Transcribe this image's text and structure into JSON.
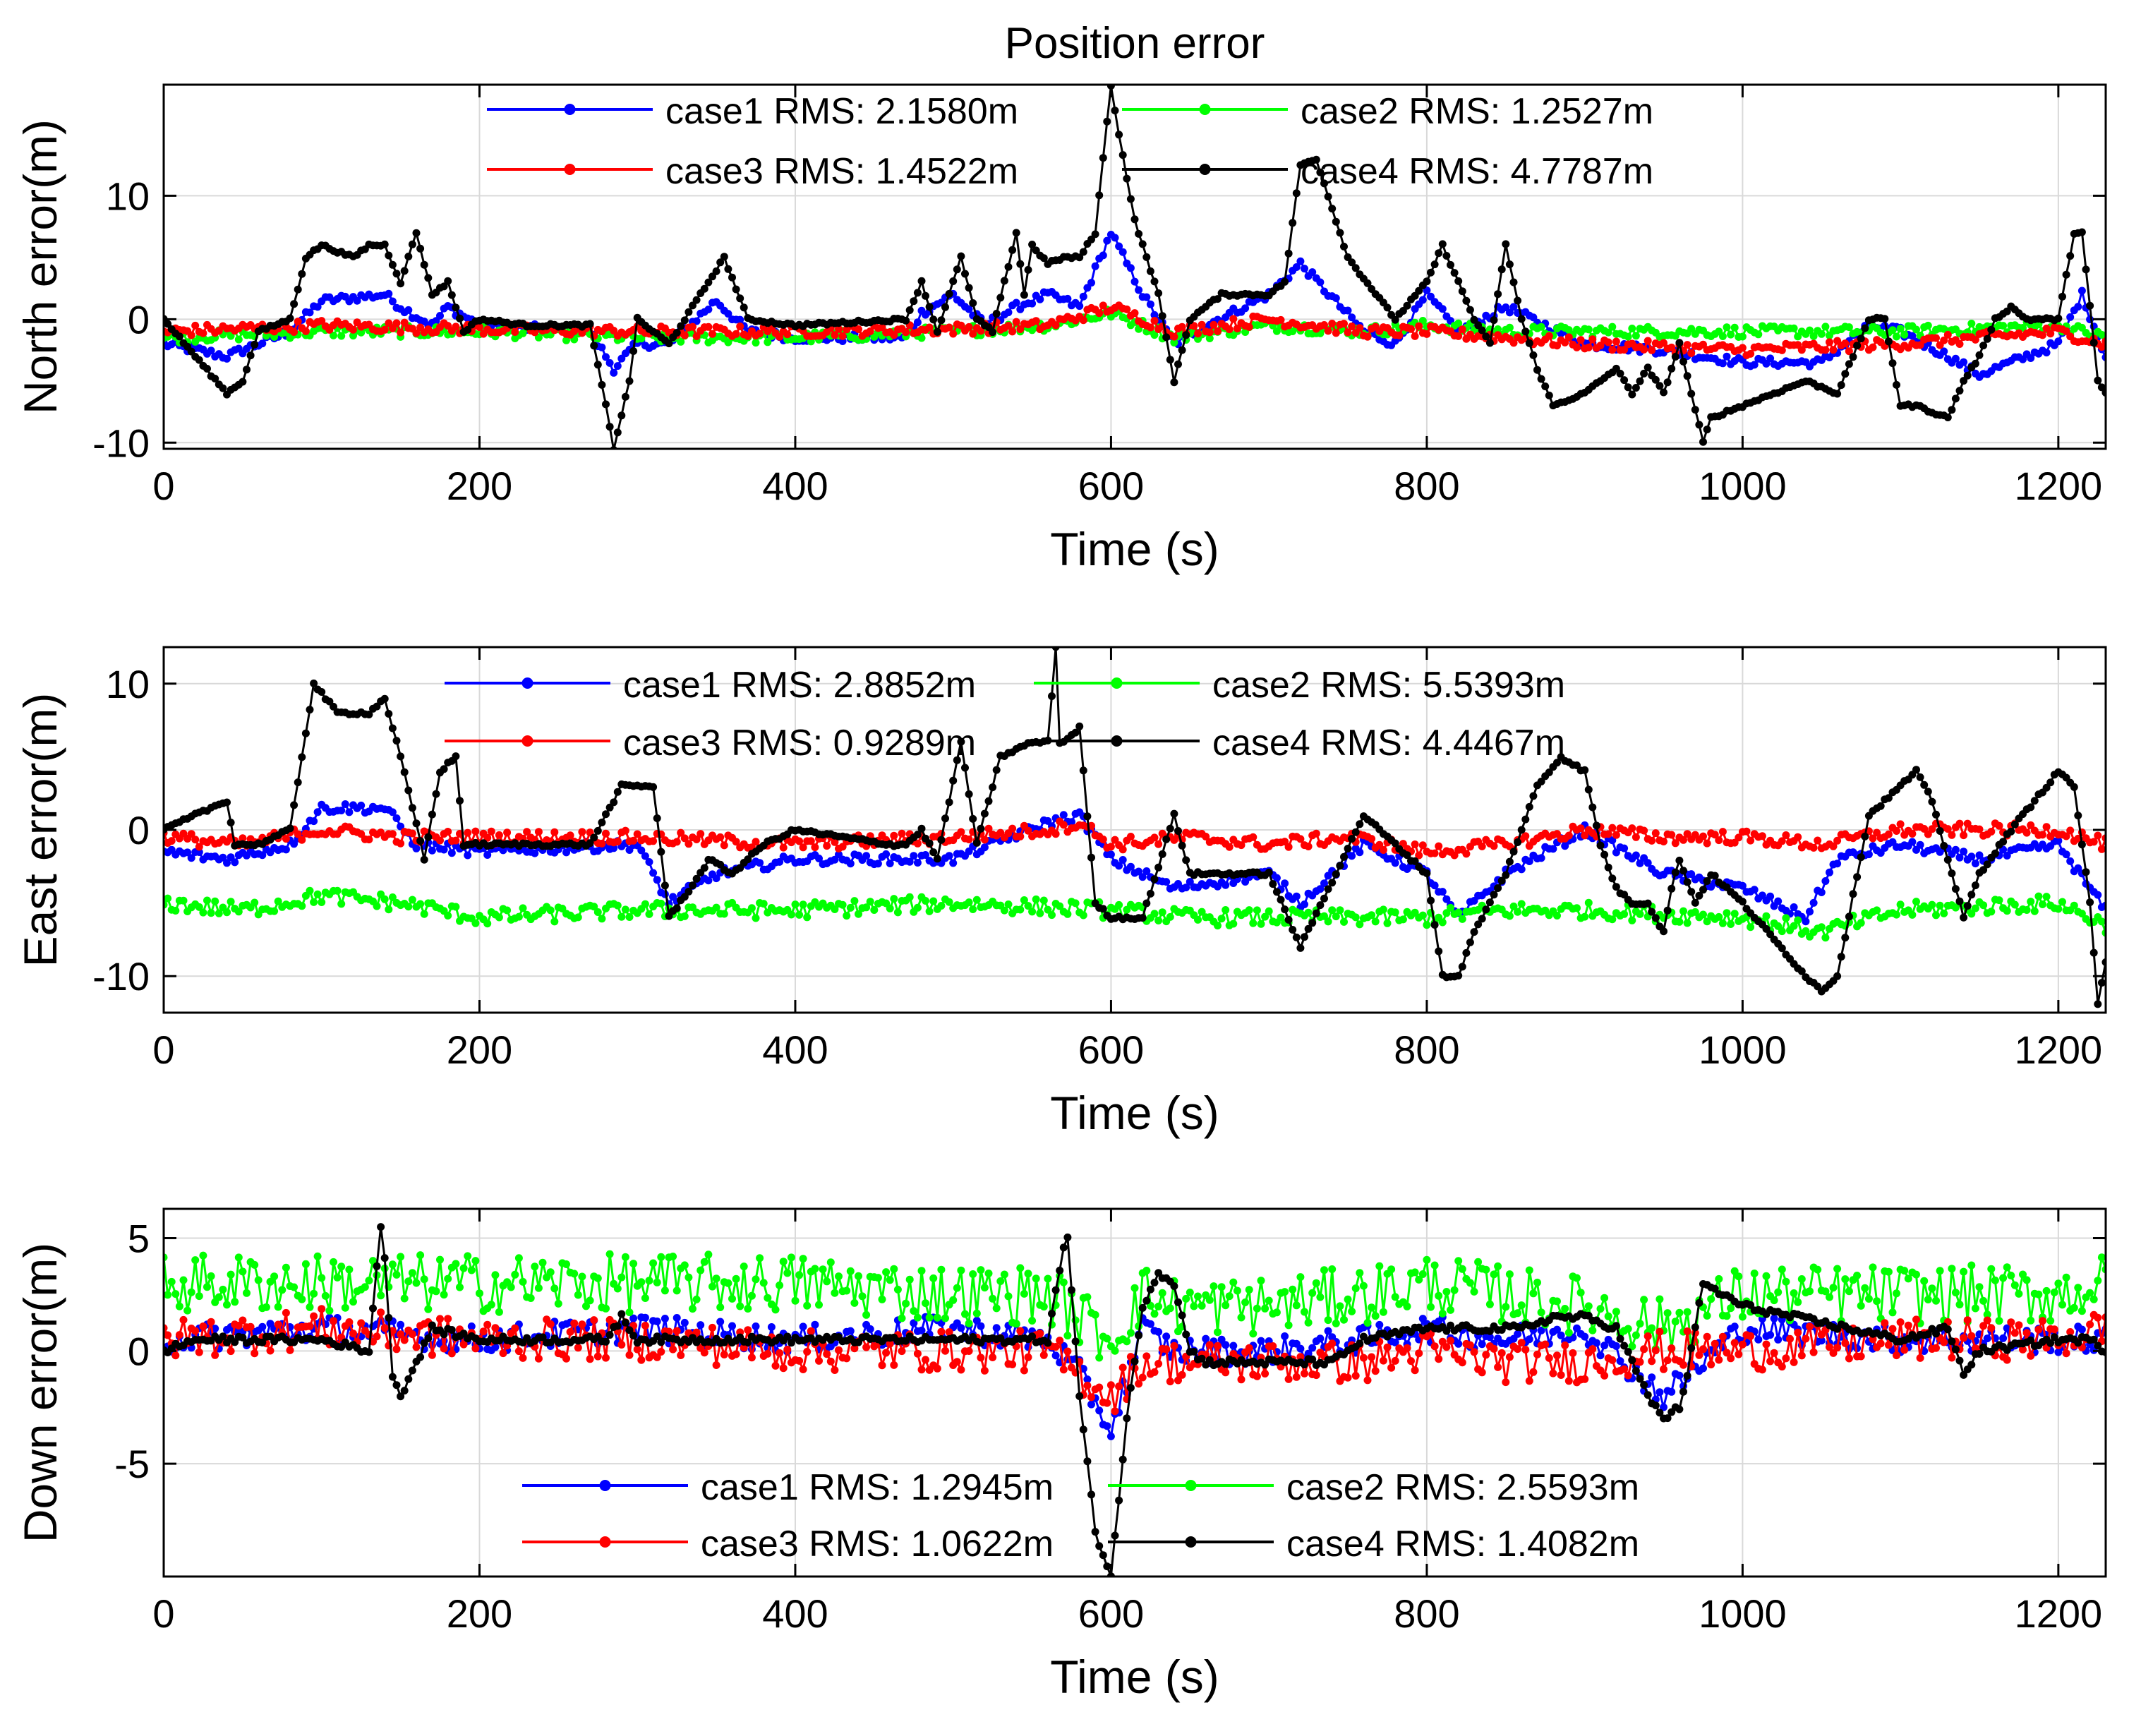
{
  "figure_title": "Position error",
  "chart_data": [
    {
      "type": "line",
      "title": "Position error",
      "xlabel": "Time (s)",
      "ylabel": "North error(m)",
      "xlim": [
        0,
        1230
      ],
      "ylim": [
        -10.5,
        19
      ],
      "x_ticks": [
        0,
        200,
        400,
        600,
        800,
        1000,
        1200
      ],
      "y_ticks": [
        -10,
        0,
        10
      ],
      "grid": true,
      "legend_position": "top-center",
      "series": [
        {
          "name": "case1",
          "legend": "case1 RMS: 2.1580m",
          "color": "#0000ff",
          "rms": 2.158,
          "x": [
            0,
            40,
            80,
            100,
            140,
            150,
            170,
            180,
            200,
            270,
            285,
            300,
            320,
            350,
            370,
            400,
            470,
            480,
            500,
            520,
            540,
            560,
            580,
            600,
            620,
            640,
            660,
            700,
            720,
            760,
            780,
            800,
            820,
            850,
            900,
            950,
            1000,
            1050,
            1080,
            1100,
            1130,
            1150,
            1200,
            1215,
            1230
          ],
          "y": [
            -2,
            -3,
            -1,
            1.5,
            2,
            1,
            -0.5,
            1,
            -0.5,
            -1,
            -4,
            -2,
            -2,
            1.5,
            -1,
            -1.5,
            -1.5,
            0.5,
            2,
            -0.5,
            1,
            2,
            1,
            7,
            2,
            -2,
            -0.5,
            2,
            4.5,
            -1,
            -2,
            2,
            -1,
            1,
            -2,
            -2.5,
            -3.5,
            -3.5,
            -0.5,
            -1,
            -3,
            -4.5,
            -2,
            2,
            -3
          ]
        },
        {
          "name": "case2",
          "legend": "case2 RMS: 1.2527m",
          "color": "#00ff00",
          "rms": 1.2527,
          "x": [
            0,
            100,
            200,
            300,
            400,
            500,
            560,
            600,
            640,
            700,
            760,
            800,
            850,
            900,
            1000,
            1100,
            1200,
            1230
          ],
          "y": [
            -1.5,
            -1,
            -1,
            -1.5,
            -1.5,
            -1,
            -0.5,
            0.5,
            -1.5,
            -0.5,
            -1,
            -0.5,
            -1,
            -1,
            -1,
            -1,
            -0.5,
            -1.5
          ]
        },
        {
          "name": "case3",
          "legend": "case3 RMS: 1.4522m",
          "color": "#ff0000",
          "rms": 1.4522,
          "x": [
            0,
            100,
            200,
            300,
            400,
            500,
            560,
            600,
            640,
            700,
            760,
            800,
            850,
            900,
            1000,
            1100,
            1200,
            1230
          ],
          "y": [
            -1,
            -0.5,
            -0.8,
            -1,
            -1,
            -0.8,
            -0.5,
            1,
            -1,
            0,
            -1,
            -1,
            -1.5,
            -2,
            -2.5,
            -2,
            -1,
            -2
          ]
        },
        {
          "name": "case4",
          "legend": "case4 RMS: 4.7787m",
          "color": "#000000",
          "rms": 4.7787,
          "x": [
            0,
            20,
            40,
            50,
            60,
            80,
            90,
            100,
            120,
            130,
            140,
            150,
            160,
            170,
            180,
            190,
            200,
            230,
            270,
            280,
            285,
            295,
            300,
            320,
            340,
            355,
            370,
            400,
            470,
            480,
            490,
            505,
            515,
            525,
            540,
            545,
            550,
            560,
            570,
            580,
            590,
            600,
            605,
            615,
            630,
            640,
            650,
            660,
            670,
            680,
            700,
            710,
            720,
            730,
            750,
            780,
            800,
            810,
            820,
            830,
            840,
            850,
            860,
            870,
            880,
            900,
            910,
            920,
            930,
            940,
            950,
            960,
            975,
            980,
            1000,
            1040,
            1060,
            1080,
            1090,
            1100,
            1110,
            1130,
            1140,
            1150,
            1160,
            1170,
            1180,
            1200,
            1210,
            1215,
            1225,
            1230
          ],
          "y": [
            0,
            -3,
            -6,
            -5,
            -1,
            0,
            5,
            6,
            5,
            6,
            6,
            3,
            7,
            2,
            3,
            -1,
            0,
            -0.5,
            -0.5,
            -7,
            -10.5,
            -5,
            0,
            -2,
            2,
            5,
            0,
            -0.5,
            0,
            3,
            -1,
            5,
            0,
            -1,
            7,
            2,
            6,
            4.5,
            5,
            5,
            7,
            19,
            15,
            8,
            2,
            -5,
            0,
            1,
            2,
            2,
            2,
            3,
            12.5,
            13,
            5,
            0,
            3,
            6,
            3,
            0,
            -2,
            6,
            0,
            -4,
            -7,
            -6,
            -5,
            -4,
            -6,
            -4,
            -6,
            -2,
            -10,
            -8,
            -7,
            -5,
            -6,
            0,
            0,
            -7,
            -7,
            -8,
            -5,
            -3,
            0,
            1,
            0,
            0,
            7,
            7,
            -5,
            -6
          ]
        }
      ]
    },
    {
      "type": "line",
      "xlabel": "Time (s)",
      "ylabel": "East error(m)",
      "xlim": [
        0,
        1230
      ],
      "ylim": [
        -12.5,
        12.5
      ],
      "x_ticks": [
        0,
        200,
        400,
        600,
        800,
        1000,
        1200
      ],
      "y_ticks": [
        -10,
        0,
        10
      ],
      "grid": true,
      "legend_position": "top-center",
      "series": [
        {
          "name": "case1",
          "legend": "case1 RMS: 2.8852m",
          "color": "#0000ff",
          "rms": 2.8852,
          "x": [
            0,
            40,
            80,
            100,
            140,
            160,
            200,
            300,
            320,
            350,
            400,
            500,
            560,
            580,
            600,
            640,
            700,
            720,
            760,
            800,
            820,
            850,
            900,
            950,
            1000,
            1040,
            1060,
            1100,
            1150,
            1200,
            1230
          ],
          "y": [
            -1.5,
            -2,
            -1,
            1.5,
            1.5,
            -1,
            -1.5,
            -1,
            -5,
            -3,
            -2,
            -2,
            0.5,
            1,
            -2,
            -4,
            -3,
            -5,
            -1,
            -3,
            -6,
            -3,
            0,
            -3,
            -4,
            -6,
            -2,
            -1,
            -2,
            -1,
            -5.5
          ]
        },
        {
          "name": "case2",
          "legend": "case2 RMS: 5.5393m",
          "color": "#00ff00",
          "rms": 5.5393,
          "x": [
            0,
            50,
            100,
            150,
            200,
            300,
            400,
            500,
            600,
            650,
            700,
            800,
            850,
            900,
            1000,
            1050,
            1100,
            1200,
            1230
          ],
          "y": [
            -5,
            -5.5,
            -4.5,
            -5,
            -6,
            -5.5,
            -5.5,
            -5,
            -5.5,
            -6,
            -6,
            -6,
            -5.5,
            -5.5,
            -6,
            -7,
            -5.5,
            -5,
            -6.5
          ]
        },
        {
          "name": "case3",
          "legend": "case3 RMS: 0.9289m",
          "color": "#ff0000",
          "rms": 0.9289,
          "x": [
            0,
            50,
            100,
            150,
            200,
            300,
            400,
            500,
            560,
            580,
            600,
            650,
            700,
            750,
            800,
            850,
            900,
            950,
            1000,
            1050,
            1100,
            1200,
            1230
          ],
          "y": [
            -0.5,
            -1,
            0,
            -0.5,
            -0.5,
            -0.5,
            -1,
            -0.5,
            0,
            0.5,
            -1,
            -0.5,
            -1,
            -0.5,
            -1.5,
            -1,
            0,
            -0.5,
            -0.5,
            -1,
            0,
            0,
            -1
          ]
        },
        {
          "name": "case4",
          "legend": "case4 RMS: 4.4467m",
          "color": "#000000",
          "rms": 4.4467,
          "x": [
            0,
            20,
            40,
            45,
            60,
            80,
            95,
            110,
            130,
            140,
            150,
            165,
            175,
            185,
            190,
            270,
            290,
            310,
            320,
            340,
            345,
            360,
            380,
            400,
            460,
            470,
            480,
            490,
            505,
            515,
            530,
            550,
            560,
            565,
            567,
            570,
            580,
            590,
            600,
            620,
            640,
            650,
            700,
            720,
            760,
            800,
            810,
            820,
            830,
            850,
            870,
            885,
            900,
            910,
            920,
            930,
            940,
            950,
            955,
            960,
            970,
            980,
            1000,
            1040,
            1050,
            1060,
            1080,
            1100,
            1110,
            1120,
            1140,
            1150,
            1170,
            1200,
            1210,
            1220,
            1225,
            1230
          ],
          "y": [
            0,
            1,
            2,
            -1,
            -1,
            0,
            10,
            8,
            8,
            9,
            5,
            -2,
            4,
            5,
            -1,
            -1,
            3,
            3,
            -6,
            -3,
            -2,
            -3,
            -1,
            0,
            -1,
            -1,
            0,
            -2,
            6,
            -1,
            5,
            6,
            6,
            12.5,
            6,
            6,
            7,
            -5,
            -6,
            -6,
            1,
            -3,
            -3,
            -8,
            1,
            -3,
            -10,
            -10,
            -7,
            -3,
            3,
            5,
            4,
            -1,
            -4,
            -5,
            -5,
            -7,
            -4,
            -2,
            -5,
            -3,
            -5,
            -10,
            -11,
            -10,
            1,
            3,
            4,
            2,
            -6,
            -3,
            0,
            4,
            3,
            -5,
            -12,
            -9
          ]
        }
      ]
    },
    {
      "type": "line",
      "xlabel": "Time (s)",
      "ylabel": "Down error(m)",
      "xlim": [
        0,
        1230
      ],
      "ylim": [
        -10,
        6.3
      ],
      "x_ticks": [
        0,
        200,
        400,
        600,
        800,
        1000,
        1200
      ],
      "y_ticks": [
        -5,
        0,
        5
      ],
      "grid": true,
      "legend_position": "bottom-center",
      "series": [
        {
          "name": "case1",
          "legend": "case1 RMS: 1.2945m",
          "color": "#0000ff",
          "rms": 1.2945,
          "x": [
            0,
            100,
            200,
            300,
            400,
            500,
            560,
            580,
            600,
            620,
            640,
            700,
            760,
            800,
            850,
            900,
            950,
            1000,
            1100,
            1200,
            1230
          ],
          "y": [
            0.5,
            1,
            0.5,
            1,
            0.5,
            1,
            0.5,
            -1,
            -3.5,
            1,
            0,
            0,
            0.5,
            1,
            0.5,
            1,
            -2,
            1,
            0.5,
            0.5,
            0.5
          ]
        },
        {
          "name": "case2",
          "legend": "case2 RMS: 2.5593m",
          "color": "#00ff00",
          "rms": 2.5593,
          "x": [
            0,
            100,
            200,
            300,
            400,
            500,
            560,
            580,
            600,
            620,
            640,
            700,
            760,
            800,
            850,
            900,
            950,
            1000,
            1100,
            1200,
            1230
          ],
          "y": [
            3,
            3,
            3,
            3,
            3,
            2.5,
            2.5,
            1.5,
            0.5,
            2.5,
            2,
            2,
            2.5,
            3,
            2.5,
            2,
            1,
            2.5,
            2.5,
            2.5,
            3
          ]
        },
        {
          "name": "case3",
          "legend": "case3 RMS: 1.0622m",
          "color": "#ff0000",
          "rms": 1.0622,
          "x": [
            0,
            100,
            200,
            300,
            400,
            500,
            560,
            580,
            600,
            620,
            640,
            700,
            760,
            800,
            850,
            900,
            950,
            1000,
            1100,
            1200,
            1230
          ],
          "y": [
            0.5,
            1,
            0.5,
            0.5,
            0,
            0,
            0,
            -1,
            -2,
            -0.5,
            -0.5,
            -0.5,
            -0.5,
            0,
            -0.5,
            -0.5,
            0,
            0,
            0.5,
            0.5,
            1
          ]
        },
        {
          "name": "case4",
          "legend": "case4 RMS: 1.4082m",
          "color": "#000000",
          "rms": 1.4082,
          "x": [
            0,
            20,
            100,
            130,
            138,
            145,
            150,
            170,
            200,
            280,
            290,
            300,
            400,
            500,
            560,
            572,
            580,
            590,
            600,
            610,
            620,
            630,
            640,
            650,
            660,
            700,
            740,
            760,
            800,
            860,
            880,
            900,
            920,
            940,
            950,
            960,
            965,
            975,
            1000,
            1100,
            1130,
            1140,
            1150,
            1200,
            1220,
            1230
          ],
          "y": [
            0,
            0.5,
            0.5,
            0,
            6,
            -1,
            -2,
            1,
            0.5,
            0.5,
            1.5,
            0.5,
            0.5,
            0.5,
            0.5,
            5.5,
            -2,
            -8,
            -10,
            -3,
            2,
            3.5,
            3,
            0,
            -0.5,
            -0.5,
            -0.5,
            0.5,
            1,
            1,
            1.5,
            1.5,
            1,
            -2,
            -3,
            -2.5,
            -1,
            3,
            2,
            0.5,
            1,
            -1,
            0,
            0.5,
            0.5,
            0
          ]
        }
      ]
    }
  ]
}
